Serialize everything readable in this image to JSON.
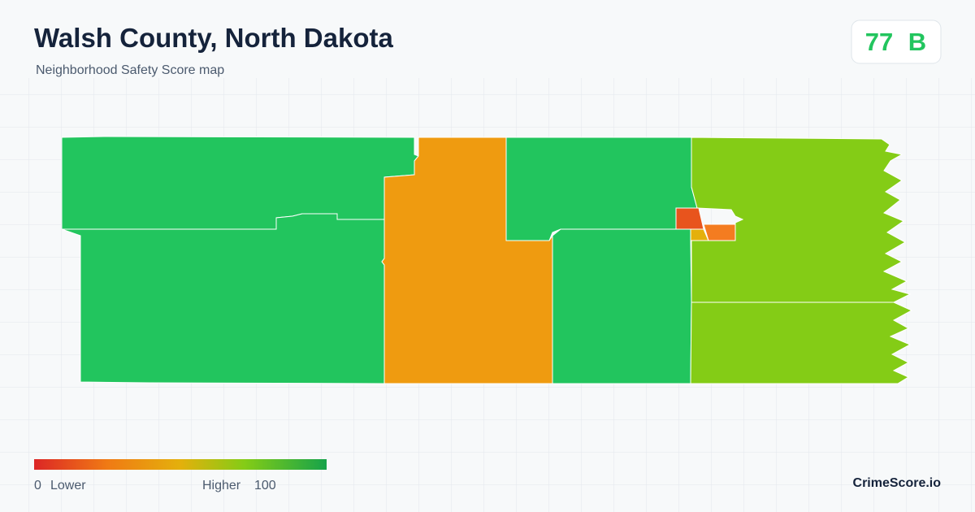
{
  "header": {
    "title": "Walsh County, North Dakota",
    "subtitle": "Neighborhood Safety Score map"
  },
  "score": {
    "value": "77",
    "grade": "B"
  },
  "legend": {
    "min": 0,
    "min_label": "Lower",
    "max_label": "Higher",
    "max": 100
  },
  "brand": "CrimeScore.io"
}
